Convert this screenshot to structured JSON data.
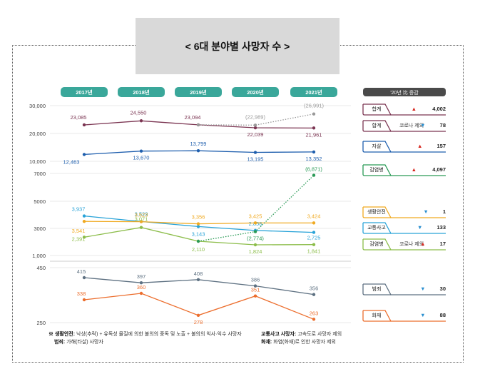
{
  "title": "< 6대 분야별 사망자 수 >",
  "chart_data": {
    "type": "line",
    "x": [
      "2017년",
      "2018년",
      "2019년",
      "2020년",
      "2021년"
    ],
    "y_ticks": [
      "30,000",
      "20,000",
      "10,000",
      "7000",
      "5000",
      "3000",
      "1,000",
      "450",
      "250"
    ],
    "series": [
      {
        "name": "합계",
        "color": "#7b3552",
        "values": [
          23085,
          24550,
          23094,
          22039,
          21961
        ],
        "labels": [
          "23,085",
          "24,550",
          "23,094",
          "22,039",
          "21,961"
        ]
      },
      {
        "name": "합계 (코로나 포함)",
        "color": "#999999",
        "dotted": true,
        "values": [
          null,
          null,
          23094,
          22989,
          26991
        ],
        "labels": [
          "",
          "",
          "",
          "(22,989)",
          "(26,991)"
        ]
      },
      {
        "name": "자살",
        "color": "#1f5fae",
        "values": [
          12463,
          13670,
          13799,
          13195,
          13352
        ],
        "labels": [
          "12,463",
          "13,670",
          "13,799",
          "13,195",
          "13,352"
        ]
      },
      {
        "name": "교통사고",
        "color": "#29a3d8",
        "values": [
          3937,
          3529,
          3143,
          2858,
          2725
        ],
        "labels": [
          "3,937",
          "3,529",
          "3,143",
          "2,858",
          "2,725"
        ]
      },
      {
        "name": "생활안전",
        "color": "#f0aa22",
        "values": [
          3541,
          3523,
          3356,
          3425,
          3424
        ],
        "labels": [
          "3,541",
          "3,523",
          "3,356",
          "3,425",
          "3,424"
        ]
      },
      {
        "name": "감염병",
        "color": "#8cbd4a",
        "values": [
          2391,
          3071,
          2110,
          1824,
          1841
        ],
        "labels": [
          "2,391",
          "3,071",
          "2,110",
          "1,824",
          "1,841"
        ]
      },
      {
        "name": "감염병 (코로나 포함)",
        "color": "#2a9a56",
        "dotted": true,
        "values": [
          null,
          null,
          2110,
          2774,
          6871
        ],
        "labels": [
          "",
          "",
          "",
          "(2,774)",
          "(6,871)"
        ]
      },
      {
        "name": "범죄",
        "color": "#5e7182",
        "values": [
          415,
          397,
          408,
          386,
          356
        ],
        "labels": [
          "415",
          "397",
          "408",
          "386",
          "356"
        ]
      },
      {
        "name": "화재",
        "color": "#ec6d2c",
        "values": [
          338,
          360,
          278,
          351,
          263
        ],
        "labels": [
          "338",
          "360",
          "278",
          "351",
          "263"
        ]
      }
    ],
    "legend_header": "'20년 比 증감",
    "legend": [
      {
        "label": "합계",
        "sub": "",
        "dir": "up",
        "value": "4,002",
        "color": "#7b3552"
      },
      {
        "label": "합계",
        "sub": "코로나 제외",
        "dir": "down",
        "value": "78",
        "color": "#7b3552"
      },
      {
        "label": "자살",
        "sub": "",
        "dir": "up",
        "value": "157",
        "color": "#1f5fae"
      },
      {
        "label": "감염병",
        "sub": "",
        "dir": "up",
        "value": "4,097",
        "color": "#2a9a56"
      },
      {
        "label": "생활안전",
        "sub": "",
        "dir": "down",
        "value": "1",
        "color": "#f0aa22"
      },
      {
        "label": "교통사고",
        "sub": "",
        "dir": "down",
        "value": "133",
        "color": "#29a3d8"
      },
      {
        "label": "감염병",
        "sub": "코로나 제외",
        "dir": "up",
        "value": "17",
        "color": "#8cbd4a"
      },
      {
        "label": "범죄",
        "sub": "",
        "dir": "down",
        "value": "30",
        "color": "#5e7182"
      },
      {
        "label": "화재",
        "sub": "",
        "dir": "down",
        "value": "88",
        "color": "#ec6d2c"
      }
    ],
    "arrow_colors": {
      "up": "#d7261e",
      "down": "#2a8fd0"
    }
  },
  "notes": {
    "line1_key": "※ 생활안전:",
    "line1_text": "낙상(추락) + 유독성 물질에 의한 불의의 중독 및 노출 + 불의의 익사·익수 사망자",
    "line1b_key": "교통사고 사망자:",
    "line1b_text": "고속도로 사망자 제외",
    "line2_key": "범죄:",
    "line2_text": "가해(타살) 사망자",
    "line2b_key": "화재:",
    "line2b_text": "화염(화재)로 인한 사망자 제외"
  }
}
